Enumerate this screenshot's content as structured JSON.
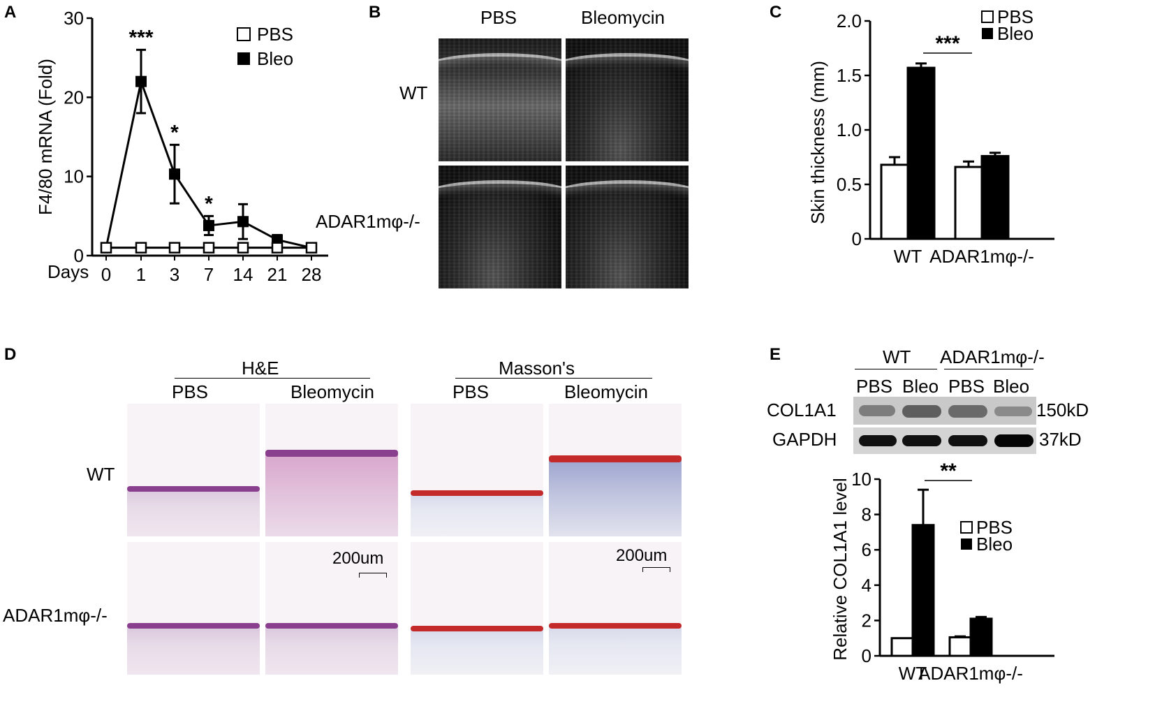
{
  "panels": {
    "a": {
      "letter": "A"
    },
    "b": {
      "letter": "B",
      "col_pbs": "PBS",
      "col_bleomycin": "Bleomycin",
      "row_wt": "WT",
      "row_ko": "ADAR1mφ-/-"
    },
    "c": {
      "letter": "C"
    },
    "d": {
      "letter": "D",
      "he": "H&E",
      "masson": "Masson's",
      "pbs1": "PBS",
      "bleo1": "Bleomycin",
      "pbs2": "PBS",
      "bleo2": "Bleomycin",
      "row_wt": "WT",
      "row_ko": "ADAR1mφ-/-",
      "scale1": "200um",
      "scale2": "200um"
    },
    "e": {
      "letter": "E",
      "group_wt": "WT",
      "group_ko": "ADAR1mφ-/-",
      "pbs1": "PBS",
      "bleo1": "Bleo",
      "pbs2": "PBS",
      "bleo2": "Bleo",
      "col1a1": "COL1A1",
      "gapdh": "GAPDH",
      "kd150": "150kD",
      "kd37": "37kD"
    }
  },
  "chart_data": [
    {
      "id": "A",
      "type": "line",
      "ylabel": "F4/80 mRNA (Fold)",
      "xlabel_prefix": "Days",
      "categories": [
        "0",
        "1",
        "3",
        "7",
        "14",
        "21",
        "28"
      ],
      "yticks": [
        "0",
        "10",
        "20",
        "30"
      ],
      "ylim": [
        0,
        30
      ],
      "legend": [
        "PBS",
        "Bleo"
      ],
      "series": [
        {
          "name": "PBS",
          "values": [
            1,
            1,
            1,
            1,
            1,
            1,
            1
          ],
          "err": [
            0,
            0,
            0,
            0,
            0,
            0,
            0
          ]
        },
        {
          "name": "Bleo",
          "values": [
            1,
            22,
            10.3,
            3.8,
            4.3,
            2,
            1
          ],
          "err": [
            0,
            4,
            3.7,
            1.2,
            2.2,
            0.6,
            0
          ]
        }
      ],
      "significance": [
        "",
        "***",
        "*",
        "*",
        "",
        "",
        ""
      ]
    },
    {
      "id": "C",
      "type": "bar",
      "ylabel": "Skin thickness (mm)",
      "categories": [
        "WT",
        "ADAR1mφ-/-"
      ],
      "yticks": [
        "0",
        "0.5",
        "1.0",
        "1.5",
        "2.0"
      ],
      "ylim": [
        0,
        2.0
      ],
      "legend": [
        "PBS",
        "Bleo"
      ],
      "series": [
        {
          "name": "PBS",
          "values": [
            0.68,
            0.66
          ],
          "err": [
            0.07,
            0.05
          ]
        },
        {
          "name": "Bleo",
          "values": [
            1.57,
            0.76
          ],
          "err": [
            0.04,
            0.03
          ]
        }
      ],
      "significance": "***"
    },
    {
      "id": "E",
      "type": "bar",
      "ylabel": "Relative COL1A1 level",
      "categories": [
        "WT",
        "ADAR1mφ-/-"
      ],
      "yticks": [
        "0",
        "2",
        "4",
        "6",
        "8",
        "10"
      ],
      "ylim": [
        0,
        10
      ],
      "legend": [
        "PBS",
        "Bleo"
      ],
      "series": [
        {
          "name": "PBS",
          "values": [
            1,
            1.05
          ],
          "err": [
            0,
            0.05
          ]
        },
        {
          "name": "Bleo",
          "values": [
            7.4,
            2.1
          ],
          "err": [
            2.0,
            0.1
          ]
        }
      ],
      "significance": "**"
    }
  ]
}
